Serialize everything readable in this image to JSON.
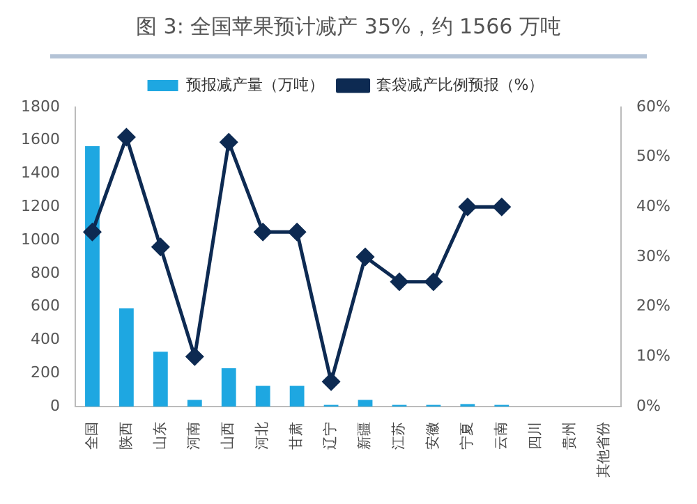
{
  "chart_data": {
    "type": "bar",
    "title": "图 3:   全国苹果预计减产 35%，约 1566 万吨",
    "categories": [
      "全国",
      "陕西",
      "山东",
      "河南",
      "山西",
      "河北",
      "甘肃",
      "辽宁",
      "新疆",
      "江苏",
      "安徽",
      "宁夏",
      "云南",
      "四川",
      "贵州",
      "其他省份"
    ],
    "series": [
      {
        "name": "预报减产量（万吨）",
        "color": "#1ea7e1",
        "values": [
          1566,
          590,
          330,
          40,
          230,
          125,
          125,
          10,
          40,
          10,
          10,
          15,
          10,
          null,
          null,
          null
        ]
      },
      {
        "name": "套袋减产比例预报（%）",
        "type": "line",
        "axis": "y2",
        "color": "#0d2a52",
        "marker": "diamond",
        "values": [
          35,
          54,
          32,
          10,
          53,
          35,
          35,
          5,
          30,
          25,
          25,
          40,
          40,
          null,
          null,
          null
        ]
      }
    ],
    "ylim": [
      0,
      1800
    ],
    "yticks": [
      0,
      200,
      400,
      600,
      800,
      1000,
      1200,
      1400,
      1600,
      1800
    ],
    "y2lim": [
      0,
      60
    ],
    "y2ticks": [
      {
        "value": 0,
        "label": "0%"
      },
      {
        "value": 10,
        "label": "10%"
      },
      {
        "value": 20,
        "label": "20%"
      },
      {
        "value": 30,
        "label": "30%"
      },
      {
        "value": 40,
        "label": "40%"
      },
      {
        "value": 50,
        "label": "50%"
      },
      {
        "value": 60,
        "label": "60%"
      }
    ],
    "legend": "top",
    "grid": false
  }
}
